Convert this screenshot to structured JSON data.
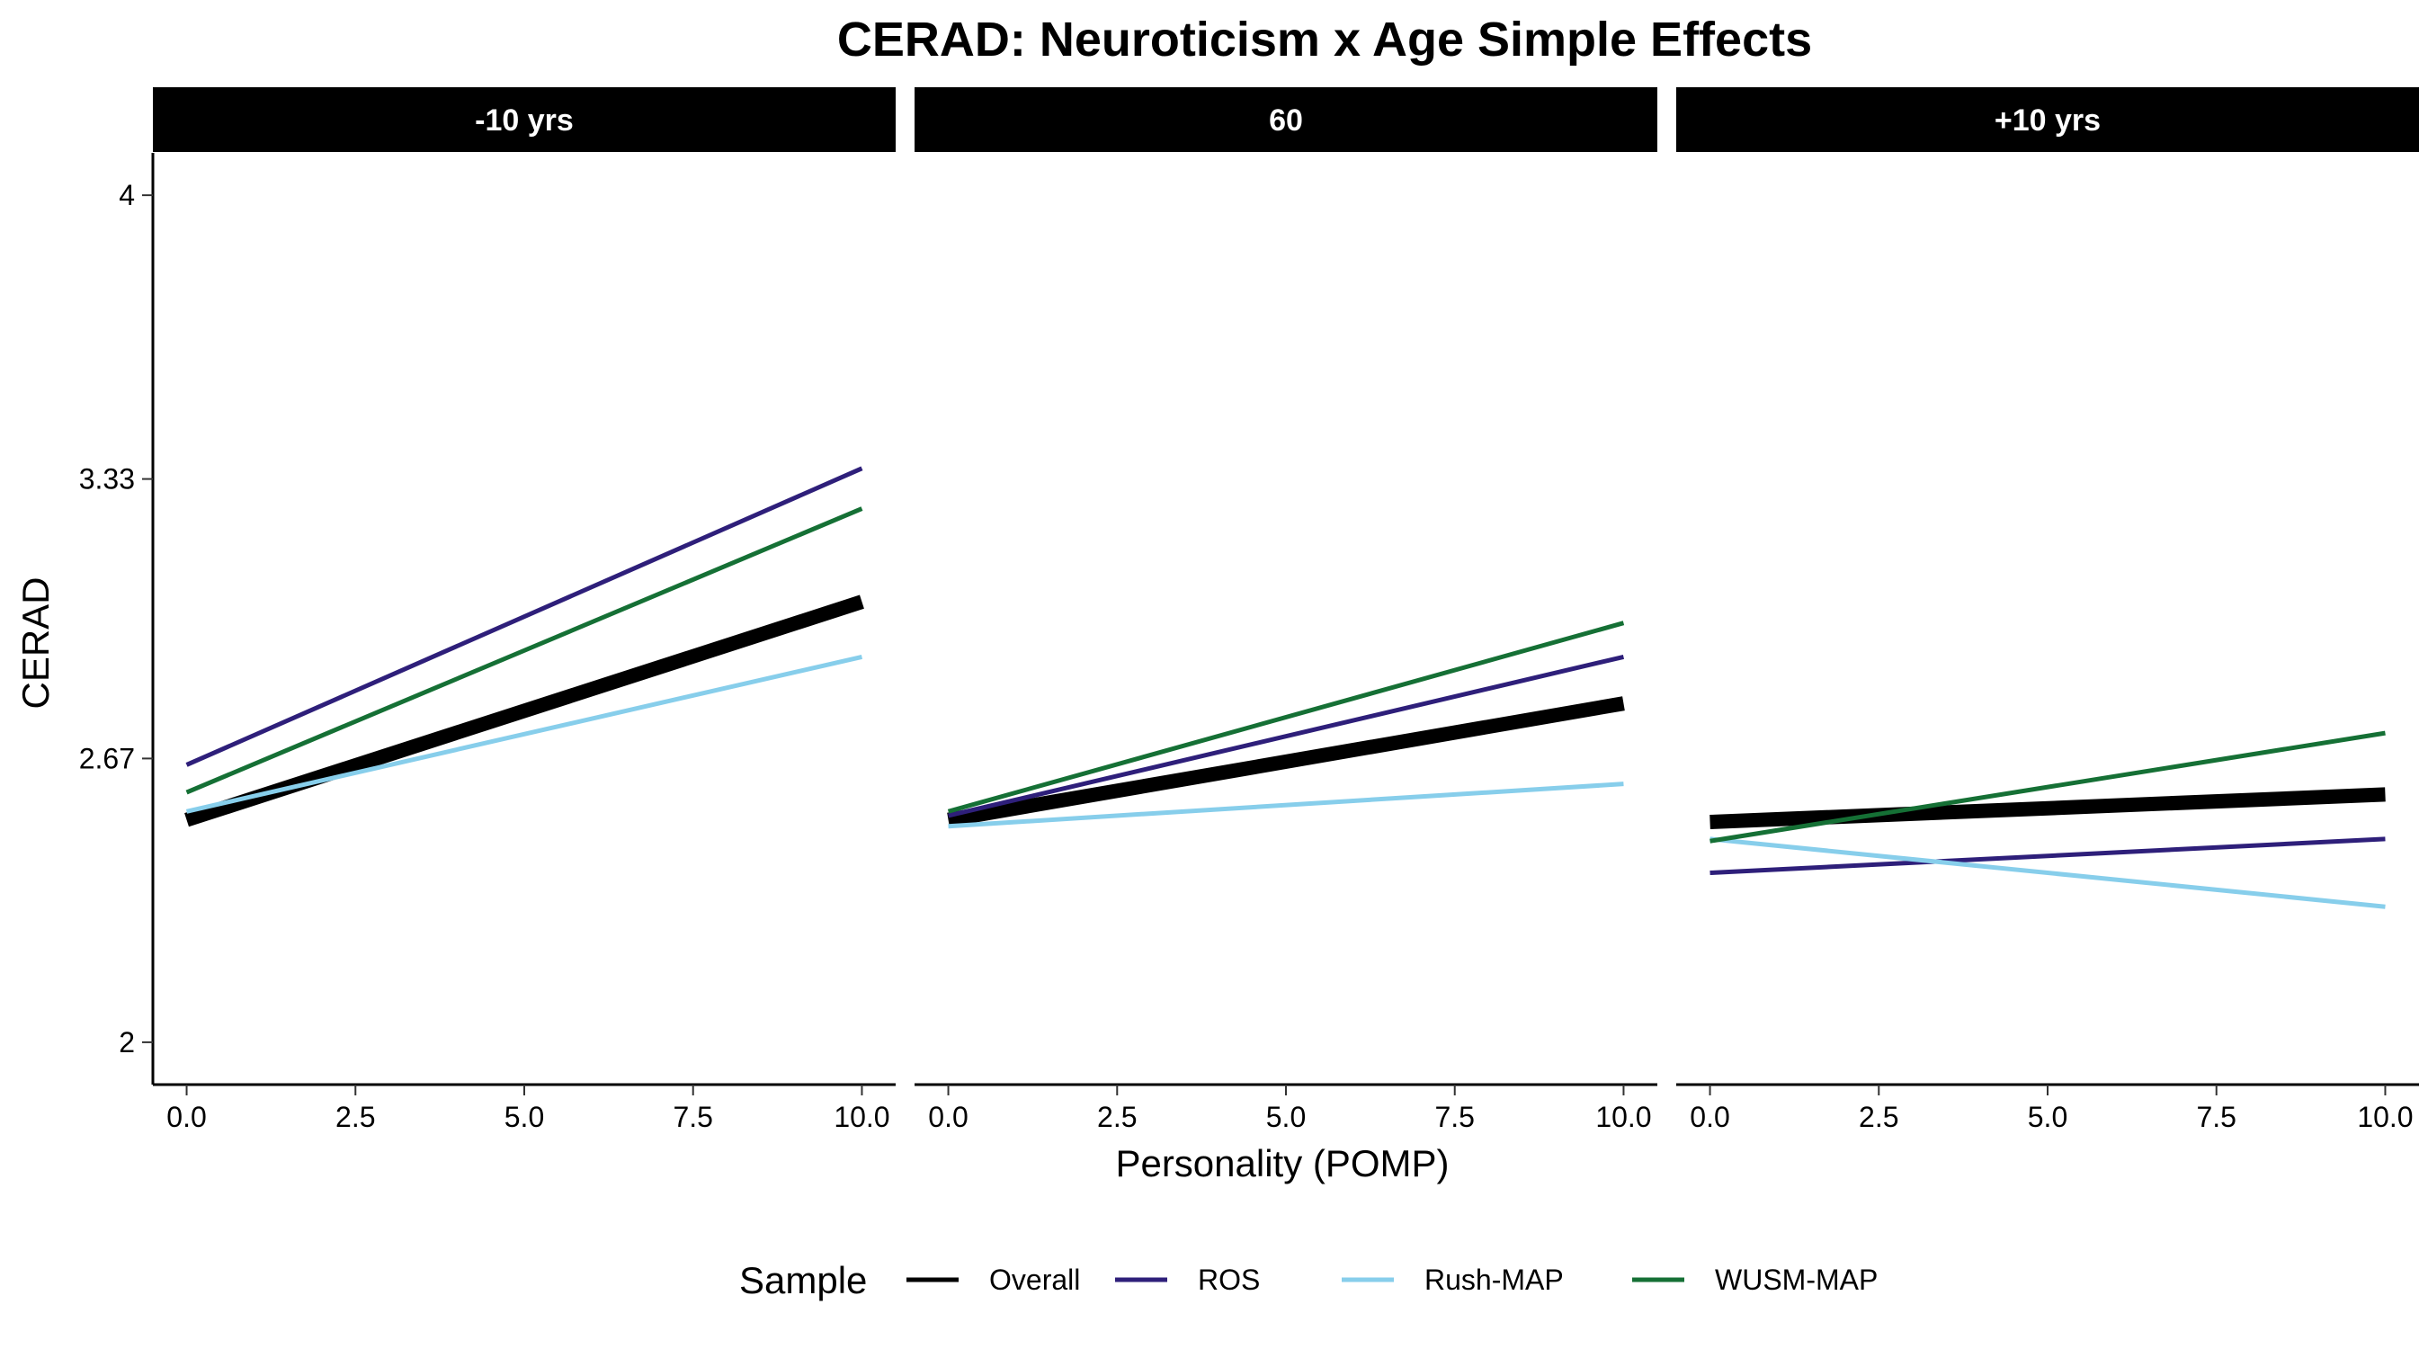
{
  "chart_data": {
    "type": "line",
    "title": "CERAD: Neuroticism x Age Simple Effects",
    "xlabel": "Personality (POMP)",
    "ylabel": "CERAD",
    "xlim": [
      -0.5,
      10.5
    ],
    "ylim": [
      1.9,
      4.1
    ],
    "x_ticks": [
      0,
      2.5,
      5,
      7.5,
      10
    ],
    "x_tick_labels": [
      "0.0",
      "2.5",
      "5.0",
      "7.5",
      "10.0"
    ],
    "y_ticks": [
      2,
      2.67,
      3.33,
      4
    ],
    "y_tick_labels": [
      "2",
      "2.67",
      "3.33",
      "4"
    ],
    "grid": false,
    "legend": {
      "title": "Sample",
      "position": "bottom",
      "entries": [
        "Overall",
        "ROS",
        "Rush-MAP",
        "WUSM-MAP"
      ]
    },
    "series_styles": [
      {
        "name": "Overall",
        "color": "#000000",
        "weight": "thick"
      },
      {
        "name": "ROS",
        "color": "#2E1F7A",
        "weight": "normal"
      },
      {
        "name": "Rush-MAP",
        "color": "#87CEEB",
        "weight": "normal"
      },
      {
        "name": "WUSM-MAP",
        "color": "#157035",
        "weight": "normal"
      }
    ],
    "facets": [
      {
        "label": "-10 yrs",
        "series": [
          {
            "name": "Overall",
            "x": [
              0,
              10
            ],
            "y": [
              2.525,
              3.04
            ]
          },
          {
            "name": "ROS",
            "x": [
              0,
              10
            ],
            "y": [
              2.655,
              3.355
            ]
          },
          {
            "name": "Rush-MAP",
            "x": [
              0,
              10
            ],
            "y": [
              2.545,
              2.91
            ]
          },
          {
            "name": "WUSM-MAP",
            "x": [
              0,
              10
            ],
            "y": [
              2.59,
              3.26
            ]
          }
        ]
      },
      {
        "label": "60",
        "series": [
          {
            "name": "Overall",
            "x": [
              0,
              10
            ],
            "y": [
              2.525,
              2.8
            ]
          },
          {
            "name": "ROS",
            "x": [
              0,
              10
            ],
            "y": [
              2.535,
              2.91
            ]
          },
          {
            "name": "Rush-MAP",
            "x": [
              0,
              10
            ],
            "y": [
              2.51,
              2.61
            ]
          },
          {
            "name": "WUSM-MAP",
            "x": [
              0,
              10
            ],
            "y": [
              2.545,
              2.99
            ]
          }
        ]
      },
      {
        "label": "+10 yrs",
        "series": [
          {
            "name": "Overall",
            "x": [
              0,
              10
            ],
            "y": [
              2.52,
              2.585
            ]
          },
          {
            "name": "ROS",
            "x": [
              0,
              10
            ],
            "y": [
              2.4,
              2.48
            ]
          },
          {
            "name": "Rush-MAP",
            "x": [
              0,
              10
            ],
            "y": [
              2.48,
              2.32
            ]
          },
          {
            "name": "WUSM-MAP",
            "x": [
              0,
              10
            ],
            "y": [
              2.475,
              2.73
            ]
          }
        ]
      }
    ]
  }
}
